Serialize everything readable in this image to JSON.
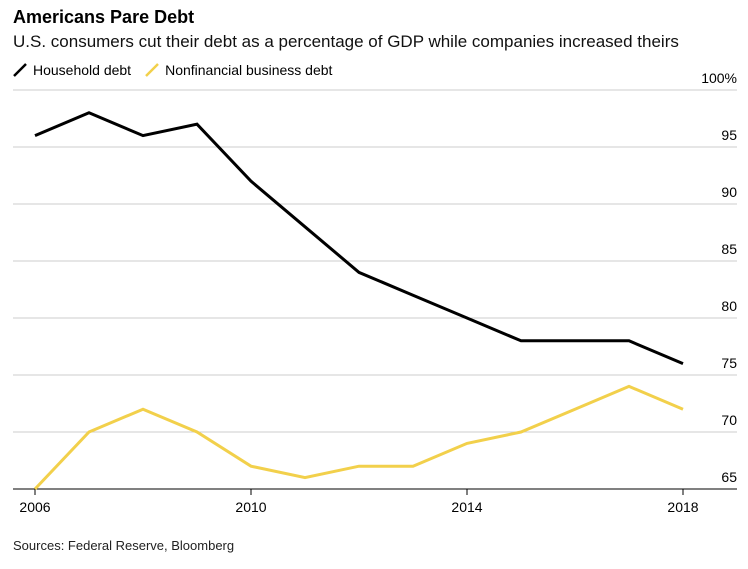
{
  "title": "Americans Pare Debt",
  "subtitle": "U.S. consumers cut their debt as a percentage of GDP while companies increased theirs",
  "source": "Sources: Federal Reserve, Bloomberg",
  "colors": {
    "household": "#000000",
    "business": "#f2d04b",
    "grid": "#cccccc"
  },
  "chart_data": {
    "type": "line",
    "x": [
      2006,
      2007,
      2008,
      2009,
      2010,
      2011,
      2012,
      2013,
      2014,
      2015,
      2016,
      2017,
      2018
    ],
    "series": [
      {
        "name": "Household debt",
        "color": "#000000",
        "values": [
          96,
          98,
          96,
          97,
          92,
          88,
          84,
          82,
          80,
          78,
          78,
          78,
          76
        ]
      },
      {
        "name": "Nonfinancial business debt",
        "color": "#f2d04b",
        "values": [
          65,
          70,
          72,
          70,
          67,
          66,
          67,
          67,
          69,
          70,
          72,
          74,
          72
        ]
      }
    ],
    "x_ticks": [
      2006,
      2010,
      2014,
      2018
    ],
    "x_tick_labels": [
      "2006",
      "2010",
      "2014",
      "2018"
    ],
    "y_ticks": [
      65,
      70,
      75,
      80,
      85,
      90,
      95,
      100
    ],
    "y_tick_labels": [
      "65",
      "70",
      "75",
      "80",
      "85",
      "90",
      "95",
      "100%"
    ],
    "xlim": [
      2006,
      2018
    ],
    "ylim": [
      65,
      100
    ],
    "y_axis_side": "right",
    "grid": true,
    "legend_position": "top-left"
  }
}
